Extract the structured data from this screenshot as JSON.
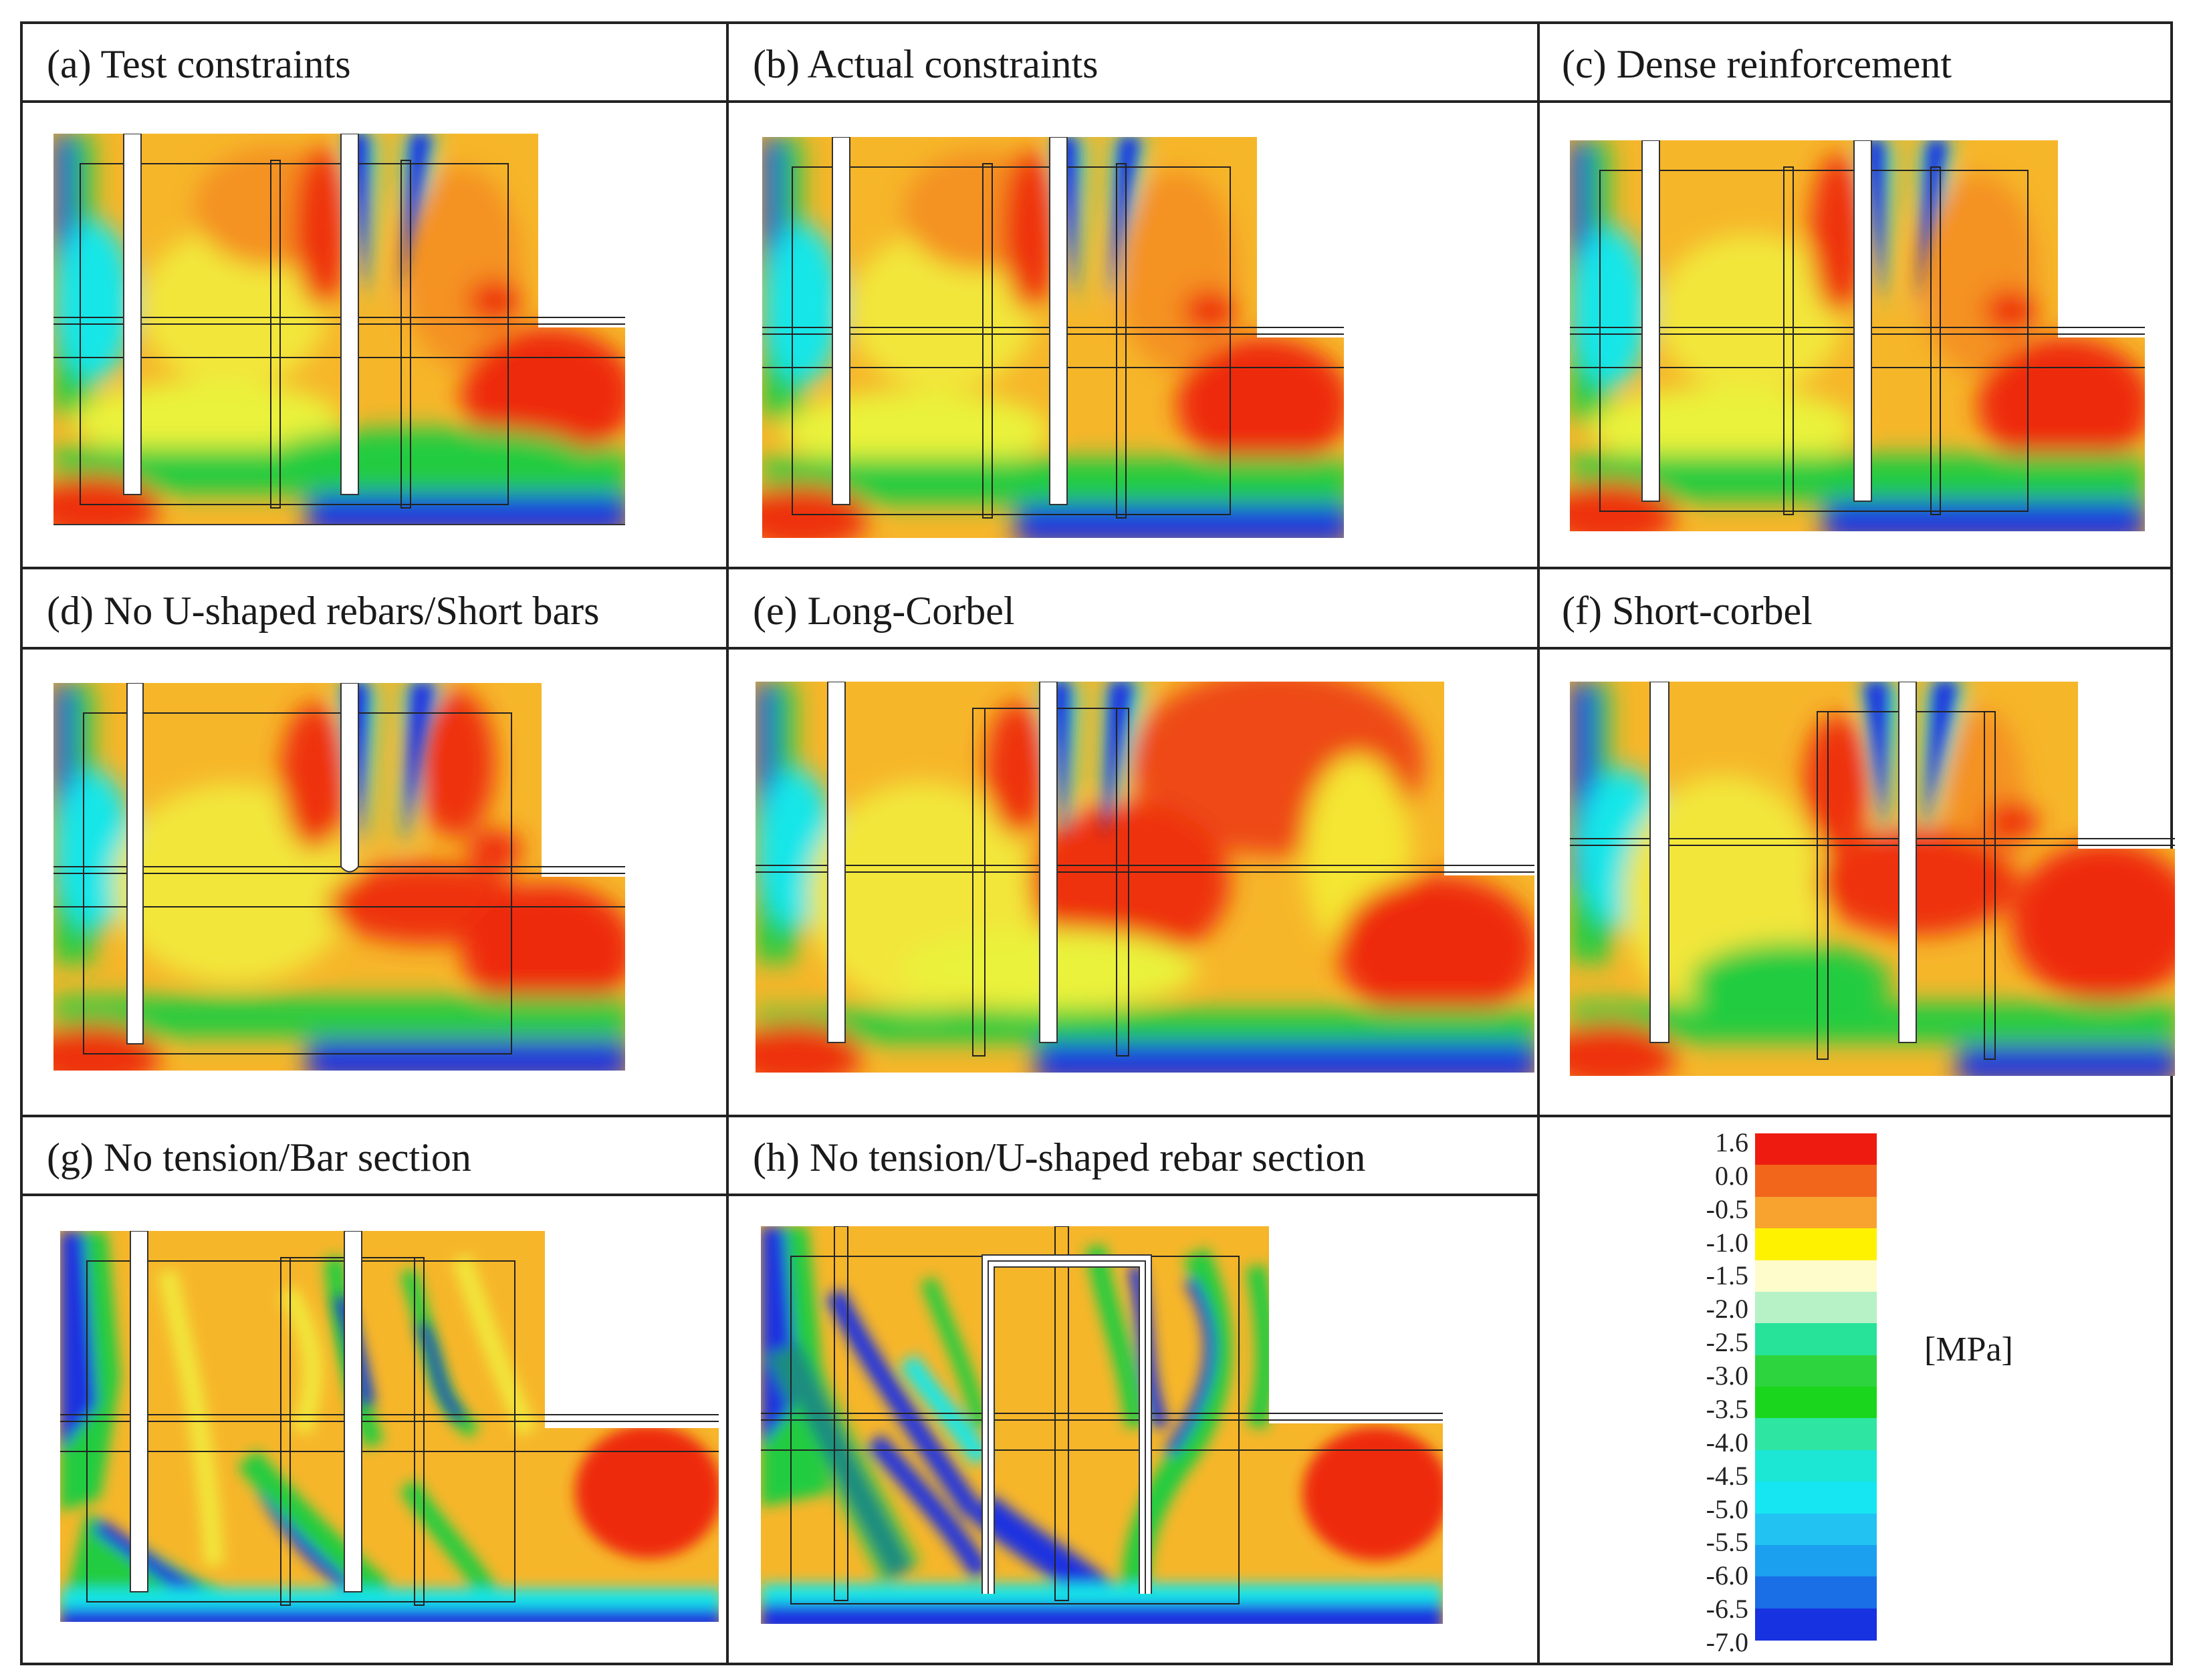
{
  "panels": [
    {
      "id": "a",
      "label": "(a) Test constraints"
    },
    {
      "id": "b",
      "label": "(b) Actual constraints"
    },
    {
      "id": "c",
      "label": "(c) Dense reinforcement"
    },
    {
      "id": "d",
      "label": "(d) No U-shaped rebars/Short bars"
    },
    {
      "id": "e",
      "label": "(e) Long-Corbel"
    },
    {
      "id": "f",
      "label": "(f) Short-corbel"
    },
    {
      "id": "g",
      "label": "(g) No tension/Bar section"
    },
    {
      "id": "h",
      "label": "(h) No tension/U-shaped rebar section"
    }
  ],
  "colorbar": {
    "unit": "[MPa]",
    "ticks": [
      "1.6",
      "0.0",
      "-0.5",
      "-1.0",
      "-1.5",
      "-2.0",
      "-2.5",
      "-3.0",
      "-3.5",
      "-4.0",
      "-4.5",
      "-5.0",
      "-5.5",
      "-6.0",
      "-6.5",
      "-7.0"
    ],
    "colors": [
      "#ee1c10",
      "#f2661c",
      "#f8a230",
      "#fff200",
      "#fffccc",
      "#b6f2c6",
      "#27e39a",
      "#2dd43e",
      "#1ad61c",
      "#2ee6a2",
      "#1ce6d4",
      "#16e6f2",
      "#22c2f2",
      "#1aa0ee",
      "#1a6ee6",
      "#1732e0"
    ]
  },
  "palette": {
    "red": "#ee2210",
    "orange": "#f6921e",
    "yellow": "#f4ea30",
    "green": "#2ad24a",
    "cyan": "#1ee4e8",
    "blue": "#1020e0"
  }
}
